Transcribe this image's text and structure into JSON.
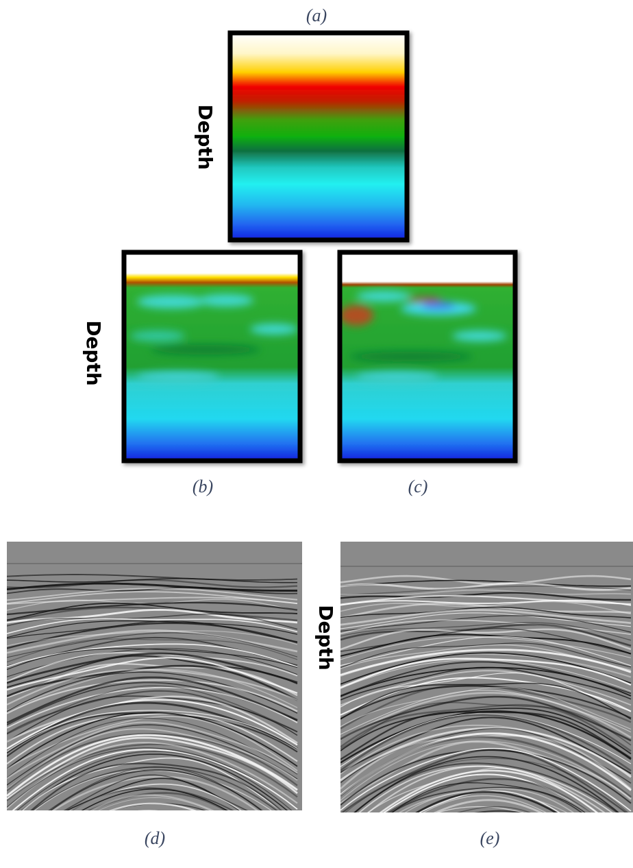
{
  "figure": {
    "panels": [
      {
        "label": "(a)",
        "axis_label": "Depth"
      },
      {
        "label": "(b)",
        "axis_label": "Depth"
      },
      {
        "label": "(c)"
      },
      {
        "label": "(d)"
      },
      {
        "label": "(e)",
        "axis_label": "Depth"
      }
    ]
  }
}
